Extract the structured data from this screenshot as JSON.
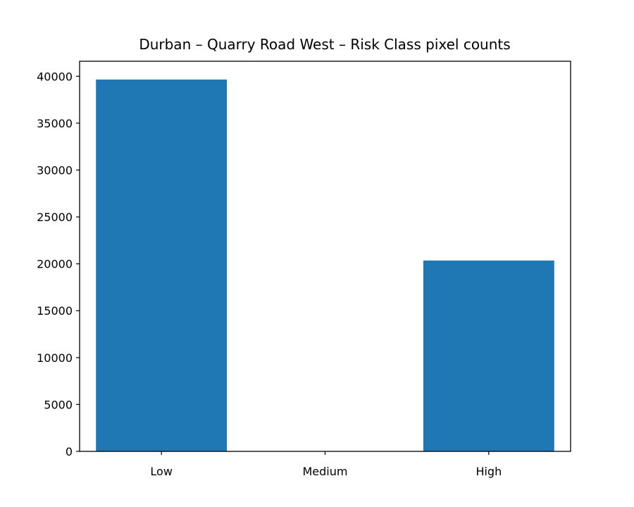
{
  "chart_data": {
    "type": "bar",
    "title": "Durban – Quarry Road West – Risk Class pixel counts",
    "xlabel": "",
    "ylabel": "",
    "categories": [
      "Low",
      "Medium",
      "High"
    ],
    "values": [
      39650,
      0,
      20350
    ],
    "ylim": [
      0,
      41600
    ],
    "yticks": [
      0,
      5000,
      10000,
      15000,
      20000,
      25000,
      30000,
      35000,
      40000
    ],
    "bar_color": "#1f77b4",
    "grid": false,
    "legend": "none"
  }
}
